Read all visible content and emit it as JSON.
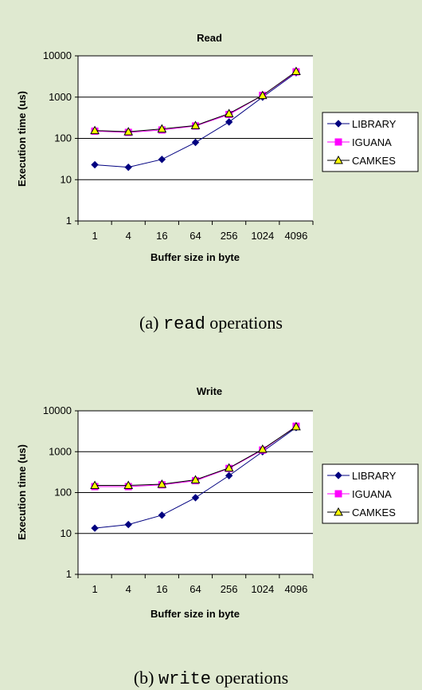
{
  "chart_data": [
    {
      "type": "line",
      "title": "Read",
      "xlabel": "Buffer size in byte",
      "ylabel": "Execution time (us)",
      "categories": [
        "1",
        "4",
        "16",
        "64",
        "256",
        "1024",
        "4096"
      ],
      "yscale": "log",
      "ylim": [
        1,
        10000
      ],
      "yticks": [
        "1",
        "10",
        "100",
        "1000",
        "10000"
      ],
      "grid": true,
      "legend": "right",
      "series": [
        {
          "name": "LIBRARY",
          "color": "#000080",
          "marker": "diamond",
          "values": [
            23,
            20,
            31,
            80,
            250,
            1000,
            3900
          ]
        },
        {
          "name": "IGUANA",
          "color": "#ff00ff",
          "marker": "square",
          "values": [
            150,
            140,
            160,
            200,
            380,
            1100,
            4100
          ]
        },
        {
          "name": "CAMKES",
          "color": "#000000",
          "marker": "triangle",
          "values": [
            155,
            145,
            170,
            205,
            400,
            1100,
            4200
          ]
        }
      ]
    },
    {
      "type": "line",
      "title": "Write",
      "xlabel": "Buffer size in byte",
      "ylabel": "Execution time (us)",
      "categories": [
        "1",
        "4",
        "16",
        "64",
        "256",
        "1024",
        "4096"
      ],
      "yscale": "log",
      "ylim": [
        1,
        10000
      ],
      "yticks": [
        "1",
        "10",
        "100",
        "1000",
        "10000"
      ],
      "grid": true,
      "legend": "right",
      "series": [
        {
          "name": "LIBRARY",
          "color": "#000080",
          "marker": "diamond",
          "values": [
            13.5,
            16.5,
            28,
            75,
            260,
            1000,
            3900
          ]
        },
        {
          "name": "IGUANA",
          "color": "#ff00ff",
          "marker": "square",
          "values": [
            140,
            140,
            155,
            195,
            390,
            1100,
            4200
          ]
        },
        {
          "name": "CAMKES",
          "color": "#000000",
          "marker": "triangle",
          "values": [
            150,
            150,
            160,
            205,
            400,
            1150,
            4100
          ]
        }
      ]
    }
  ],
  "captions": [
    {
      "prefix": "(a) ",
      "code": "read",
      "suffix": " operations"
    },
    {
      "prefix": "(b) ",
      "code": "write",
      "suffix": " operations"
    }
  ],
  "colors": {
    "background": "#dfe9d0",
    "plot_area": "#ffffff",
    "grid": "#000000"
  }
}
